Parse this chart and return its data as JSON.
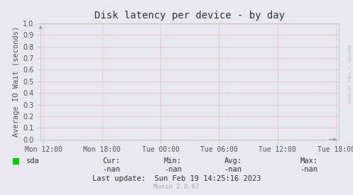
{
  "title": "Disk latency per device - by day",
  "ylabel": "Average IO Wait (seconds)",
  "background_color": "#e8e8f0",
  "plot_bg_color": "#e8e8f0",
  "grid_color": "#ff9999",
  "grid_linestyle": ":",
  "ylim": [
    0.0,
    1.0
  ],
  "yticks": [
    0.0,
    0.1,
    0.2,
    0.3,
    0.4,
    0.5,
    0.6,
    0.7,
    0.8,
    0.9,
    1.0
  ],
  "xtick_labels": [
    "Mon 12:00",
    "Mon 18:00",
    "Tue 00:00",
    "Tue 06:00",
    "Tue 12:00",
    "Tue 18:00"
  ],
  "xtick_positions": [
    0,
    1,
    2,
    3,
    4,
    5
  ],
  "xlim": [
    -0.05,
    5.05
  ],
  "legend_label": "sda",
  "legend_color": "#00cc00",
  "cur_label": "Cur:",
  "cur_val": "-nan",
  "min_label": "Min:",
  "min_val": "-nan",
  "avg_label": "Avg:",
  "avg_val": "-nan",
  "max_label": "Max:",
  "max_val": "-nan",
  "last_update": "Last update:  Sun Feb 19 14:25:16 2023",
  "munin_version": "Munin 2.0.67",
  "watermark": "RRDTOOL / TOBI OETIKER",
  "title_fontsize": 10,
  "axis_label_fontsize": 7.5,
  "tick_fontsize": 7,
  "text_color": "#555555",
  "watermark_color": "#bbbbcc",
  "arrow_color": "#9999bb",
  "spine_color": "#cccccc"
}
